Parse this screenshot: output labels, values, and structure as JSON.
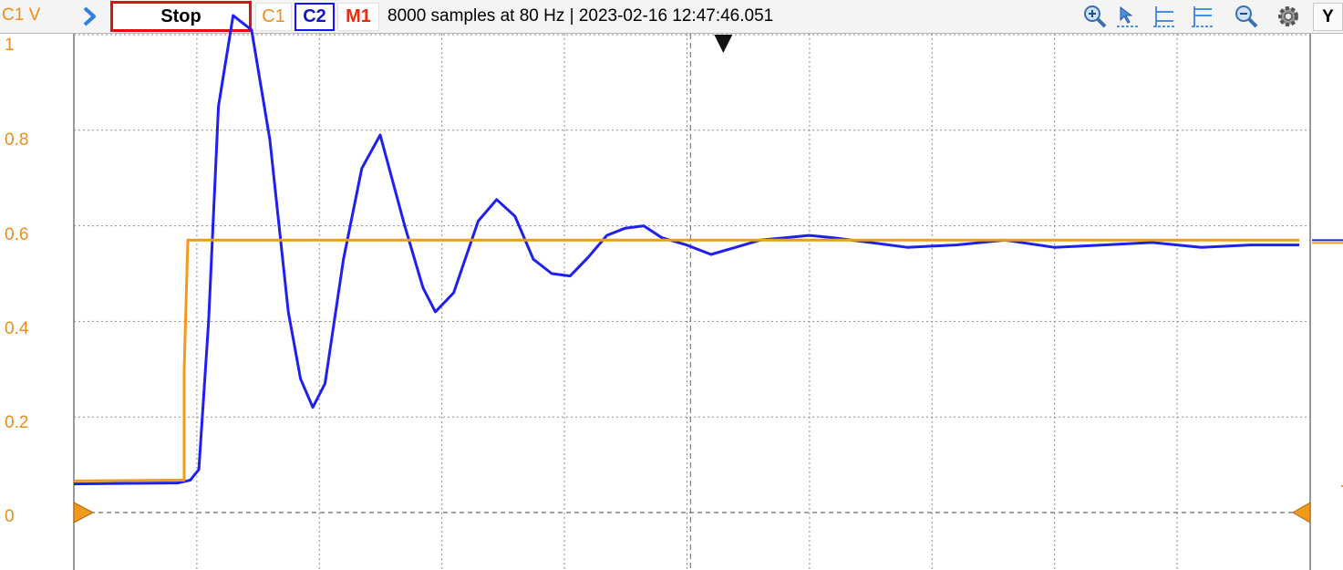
{
  "toolbar": {
    "unit_label": "C1 V",
    "run_label": "Stop",
    "channels": {
      "c1": "C1",
      "c2": "C2",
      "m1": "M1"
    },
    "status": "8000 samples at 80 Hz | 2023-02-16 12:47:46.051",
    "axis_button": "Y",
    "icons": [
      "run-arrow-icon",
      "zoom-in-icon",
      "cursor-icon",
      "horizontal-cursor-icon",
      "vertical-cursor-icon",
      "zoom-out-icon",
      "settings-gear-icon"
    ]
  },
  "colors": {
    "c1": "#f39a1c",
    "c2": "#1f1ff2",
    "stop_border": "#e01010",
    "grid": "#8a8a8a"
  },
  "chart_data": {
    "type": "line",
    "y_tick_labels": [
      "1",
      "0.8",
      "0.6",
      "0.4",
      "0.2",
      "0"
    ],
    "ylim": [
      -0.12,
      1.05
    ],
    "xlim": [
      0,
      10
    ],
    "grid": true,
    "series": [
      {
        "name": "C1",
        "x": [
          0,
          0.9,
          0.9,
          0.93,
          10
        ],
        "y": [
          0.066,
          0.068,
          0.3,
          0.57,
          0.57
        ]
      },
      {
        "name": "C2",
        "x": [
          0,
          0.85,
          0.95,
          1.02,
          1.1,
          1.18,
          1.3,
          1.45,
          1.6,
          1.75,
          1.85,
          1.95,
          2.05,
          2.2,
          2.35,
          2.5,
          2.7,
          2.85,
          2.95,
          3.1,
          3.3,
          3.45,
          3.6,
          3.75,
          3.9,
          4.05,
          4.2,
          4.35,
          4.5,
          4.65,
          4.8,
          5.0,
          5.2,
          5.4,
          5.6,
          5.8,
          6.0,
          6.2,
          6.5,
          6.8,
          7.2,
          7.6,
          8.0,
          8.4,
          8.8,
          9.2,
          9.6,
          10
        ],
        "y": [
          0.06,
          0.062,
          0.068,
          0.09,
          0.4,
          0.85,
          1.04,
          1.01,
          0.78,
          0.42,
          0.28,
          0.22,
          0.27,
          0.53,
          0.72,
          0.79,
          0.6,
          0.47,
          0.42,
          0.46,
          0.61,
          0.655,
          0.62,
          0.53,
          0.5,
          0.495,
          0.535,
          0.58,
          0.595,
          0.6,
          0.575,
          0.56,
          0.54,
          0.555,
          0.57,
          0.575,
          0.58,
          0.575,
          0.565,
          0.555,
          0.56,
          0.57,
          0.555,
          0.56,
          0.565,
          0.555,
          0.56,
          0.56
        ]
      }
    ],
    "markers": {
      "trigger_x": 5.3,
      "c1_zero_level": 0,
      "c2_right_level": 0.57
    }
  }
}
